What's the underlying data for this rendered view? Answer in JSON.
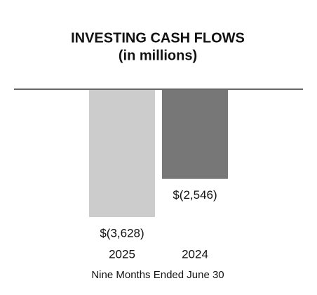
{
  "chart_data": {
    "type": "bar",
    "title": "INVESTING CASH FLOWS",
    "subtitle": "(in millions)",
    "x_label": "Nine Months Ended June 30",
    "categories": [
      "2025",
      "2024"
    ],
    "values": [
      -3628,
      -2546
    ],
    "value_labels": [
      "$(3,628)",
      "$(2,546)"
    ],
    "colors": [
      "#cccccc",
      "#777777"
    ]
  }
}
